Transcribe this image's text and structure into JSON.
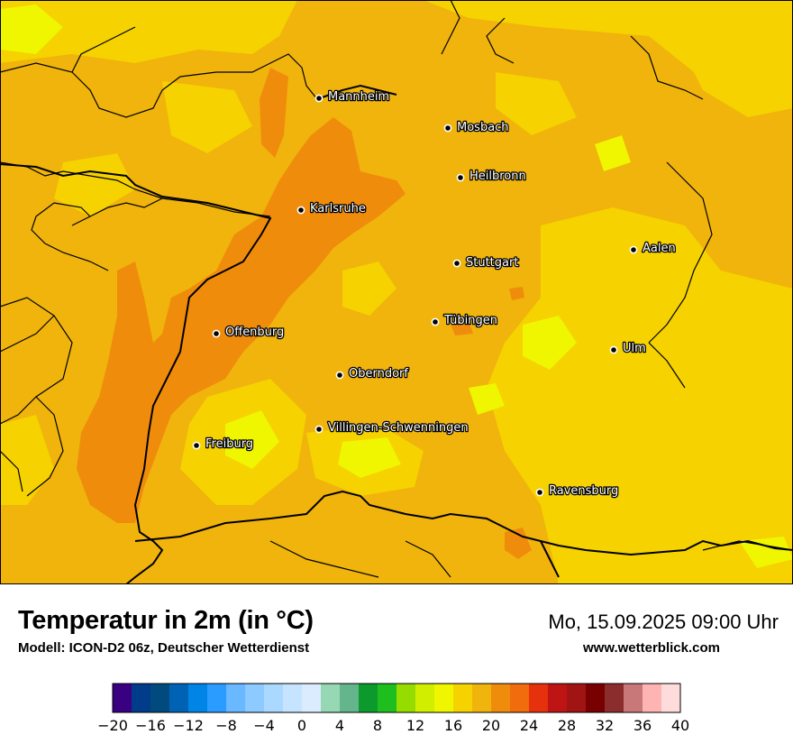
{
  "map": {
    "background_color": "#f0b40c",
    "cities": [
      {
        "name": "Mannheim"
      },
      {
        "name": "Mosbach"
      },
      {
        "name": "Heilbronn"
      },
      {
        "name": "Karlsruhe"
      },
      {
        "name": "Aalen"
      },
      {
        "name": "Stuttgart"
      },
      {
        "name": "Offenburg"
      },
      {
        "name": "Tübingen"
      },
      {
        "name": "Ulm"
      },
      {
        "name": "Oberndorf"
      },
      {
        "name": "Villingen-Schwenningen"
      },
      {
        "name": "Freiburg"
      },
      {
        "name": "Ravensburg"
      }
    ]
  },
  "header": {
    "title": "Temperatur in 2m (in °C)",
    "model": "Modell: ICON-D2 06z, Deutscher Wetterdienst",
    "datetime": "Mo, 15.09.2025 09:00 Uhr",
    "website": "www.wetterblick.com"
  },
  "legend": {
    "colors": [
      "#3a0082",
      "#003c8a",
      "#004a7e",
      "#0062b4",
      "#0084e6",
      "#2a9cff",
      "#6ab8ff",
      "#8ccaff",
      "#aad8ff",
      "#c6e4ff",
      "#dcecff",
      "#96d8b4",
      "#64b48c",
      "#0c9a2c",
      "#1ebe1e",
      "#96dc00",
      "#d2ee00",
      "#f0f500",
      "#f5d200",
      "#f0b40c",
      "#f08c0c",
      "#f06c0c",
      "#e6320c",
      "#be1414",
      "#a01414",
      "#780000",
      "#8c2d2d",
      "#c87878",
      "#ffb4b4",
      "#ffdcdc"
    ],
    "tick_labels": [
      "−20",
      "−16",
      "−12",
      "−8",
      "−4",
      "0",
      "4",
      "8",
      "12",
      "16",
      "20",
      "24",
      "28",
      "32",
      "36",
      "40"
    ]
  }
}
